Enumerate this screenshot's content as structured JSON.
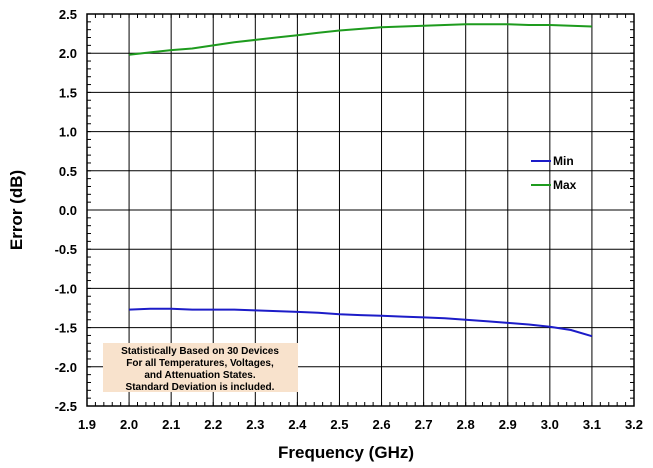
{
  "chart_data": {
    "type": "line",
    "xlabel": "Frequency (GHz)",
    "ylabel": "Error (dB)",
    "xlim": [
      1.9,
      3.2
    ],
    "ylim": [
      -2.5,
      2.5
    ],
    "x_ticks": [
      "1.9",
      "2.0",
      "2.1",
      "2.2",
      "2.3",
      "2.4",
      "2.5",
      "2.6",
      "2.7",
      "2.8",
      "2.9",
      "3.0",
      "3.1",
      "3.2"
    ],
    "y_ticks": [
      "2.5",
      "2.0",
      "1.5",
      "1.0",
      "0.5",
      "0.0",
      "-0.5",
      "-1.0",
      "-1.5",
      "-2.0",
      "-2.5"
    ],
    "grid": true,
    "legend_position": "right",
    "series": [
      {
        "name": "Min",
        "color": "#1c1cc8",
        "x": [
          2.0,
          2.05,
          2.1,
          2.15,
          2.2,
          2.25,
          2.3,
          2.35,
          2.4,
          2.45,
          2.5,
          2.55,
          2.6,
          2.65,
          2.7,
          2.75,
          2.8,
          2.85,
          2.9,
          2.95,
          3.0,
          3.05,
          3.1
        ],
        "y": [
          -1.27,
          -1.26,
          -1.26,
          -1.27,
          -1.27,
          -1.27,
          -1.28,
          -1.29,
          -1.3,
          -1.31,
          -1.33,
          -1.34,
          -1.35,
          -1.36,
          -1.37,
          -1.38,
          -1.4,
          -1.42,
          -1.44,
          -1.46,
          -1.49,
          -1.53,
          -1.61
        ]
      },
      {
        "name": "Max",
        "color": "#1e9b1e",
        "x": [
          2.0,
          2.05,
          2.1,
          2.15,
          2.2,
          2.25,
          2.3,
          2.35,
          2.4,
          2.45,
          2.5,
          2.55,
          2.6,
          2.65,
          2.7,
          2.75,
          2.8,
          2.85,
          2.9,
          2.95,
          3.0,
          3.05,
          3.1
        ],
        "y": [
          1.98,
          2.01,
          2.04,
          2.06,
          2.1,
          2.14,
          2.17,
          2.2,
          2.23,
          2.26,
          2.29,
          2.31,
          2.33,
          2.34,
          2.35,
          2.36,
          2.37,
          2.37,
          2.37,
          2.36,
          2.36,
          2.35,
          2.34
        ]
      }
    ],
    "annotation": {
      "lines": [
        "Statistically Based on 30 Devices",
        "For all Temperatures, Voltages,",
        "and  Attenuation States.",
        "Standard Deviation is included."
      ],
      "background": "#f8e2cc"
    }
  }
}
